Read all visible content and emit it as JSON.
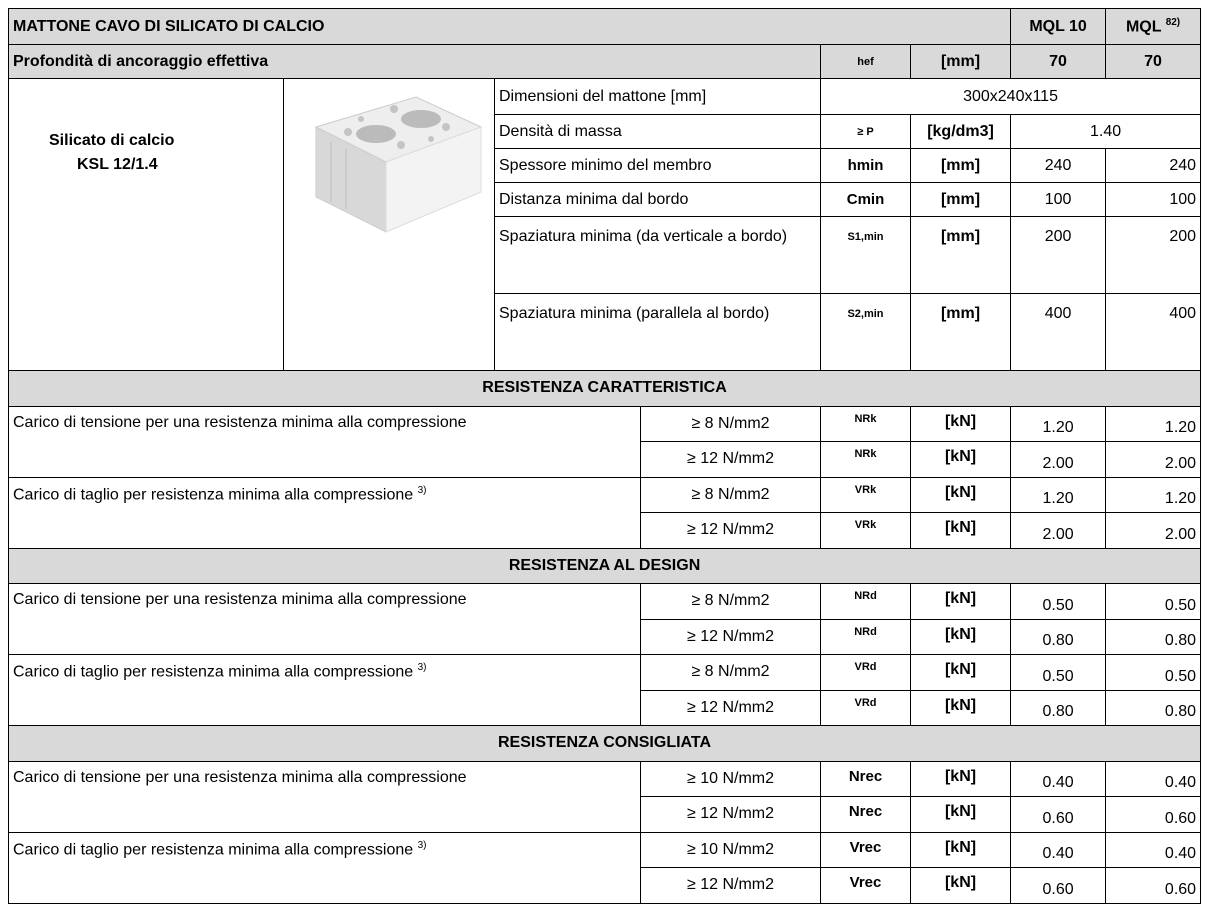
{
  "header": {
    "title": "MATTONE CAVO DI SILICATO DI CALCIO",
    "col1": "MQL 10",
    "col2": "MQL",
    "col2_sup": "82)"
  },
  "anchorage": {
    "label": "Profondità di ancoraggio effettiva",
    "symbol": "hef",
    "unit": "[mm]",
    "values": [
      "70",
      "70"
    ]
  },
  "material": {
    "name": "Silicato di calcio",
    "code": "KSL 12/1.4"
  },
  "properties": [
    {
      "label": "Dimensioni del mattone [mm]",
      "value": "300x240x115"
    },
    {
      "label": "Densità di massa",
      "symbol": "≥ P",
      "unit": "[kg/dm3]",
      "value": "1.40"
    },
    {
      "label": "Spessore minimo del membro",
      "symbol": "hmin",
      "unit": "[mm]",
      "values": [
        "240",
        "240"
      ]
    },
    {
      "label": "Distanza minima dal bordo",
      "symbol": "Cmin",
      "unit": "[mm]",
      "values": [
        "100",
        "100"
      ]
    },
    {
      "label": "Spaziatura minima (da verticale a bordo)",
      "symbol": "S1,min",
      "unit": "[mm]",
      "values": [
        "200",
        "200"
      ]
    },
    {
      "label": "Spaziatura minima (parallela al bordo)",
      "symbol": "S2,min",
      "unit": "[mm]",
      "values": [
        "400",
        "400"
      ]
    }
  ],
  "sections": [
    {
      "title": "RESISTENZA CARATTERISTICA",
      "groups": [
        {
          "label": "Carico di tensione per una resistenza minima alla compressione",
          "rows": [
            {
              "condition": "≥ 8 N/mm2",
              "symbol": "NRk",
              "unit": "[kN]",
              "values": [
                "1.20",
                "1.20"
              ]
            },
            {
              "condition": "≥ 12 N/mm2",
              "symbol": "NRk",
              "unit": "[kN]",
              "values": [
                "2.00",
                "2.00"
              ]
            }
          ]
        },
        {
          "label": "Carico di taglio per resistenza minima alla compressione",
          "label_sup": "3)",
          "rows": [
            {
              "condition": "≥ 8 N/mm2",
              "symbol": "VRk",
              "unit": "[kN]",
              "values": [
                "1.20",
                "1.20"
              ]
            },
            {
              "condition": "≥ 12 N/mm2",
              "symbol": "VRk",
              "unit": "[kN]",
              "values": [
                "2.00",
                "2.00"
              ]
            }
          ]
        }
      ]
    },
    {
      "title": "RESISTENZA AL DESIGN",
      "groups": [
        {
          "label": "Carico di tensione per una resistenza minima alla compressione",
          "rows": [
            {
              "condition": "≥ 8 N/mm2",
              "symbol": "NRd",
              "unit": "[kN]",
              "values": [
                "0.50",
                "0.50"
              ]
            },
            {
              "condition": "≥ 12 N/mm2",
              "symbol": "NRd",
              "unit": "[kN]",
              "values": [
                "0.80",
                "0.80"
              ]
            }
          ]
        },
        {
          "label": "Carico di taglio per resistenza minima alla compressione",
          "label_sup": "3)",
          "rows": [
            {
              "condition": "≥ 8 N/mm2",
              "symbol": "VRd",
              "unit": "[kN]",
              "values": [
                "0.50",
                "0.50"
              ]
            },
            {
              "condition": "≥ 12 N/mm2",
              "symbol": "VRd",
              "unit": "[kN]",
              "values": [
                "0.80",
                "0.80"
              ]
            }
          ]
        }
      ]
    },
    {
      "title": "RESISTENZA CONSIGLIATA",
      "groups": [
        {
          "label": "Carico di tensione per una resistenza minima alla compressione",
          "rows": [
            {
              "condition": "≥ 10 N/mm2",
              "symbol": "Nrec",
              "unit": "[kN]",
              "values": [
                "0.40",
                "0.40"
              ]
            },
            {
              "condition": "≥ 12 N/mm2",
              "symbol": "Nrec",
              "unit": "[kN]",
              "values": [
                "0.60",
                "0.60"
              ]
            }
          ]
        },
        {
          "label": "Carico di taglio per resistenza minima alla compressione",
          "label_sup": "3)",
          "rows": [
            {
              "condition": "≥ 10 N/mm2",
              "symbol": "Vrec",
              "unit": "[kN]",
              "values": [
                "0.40",
                "0.40"
              ]
            },
            {
              "condition": "≥ 12 N/mm2",
              "symbol": "Vrec",
              "unit": "[kN]",
              "values": [
                "0.60",
                "0.60"
              ]
            }
          ]
        }
      ]
    }
  ]
}
